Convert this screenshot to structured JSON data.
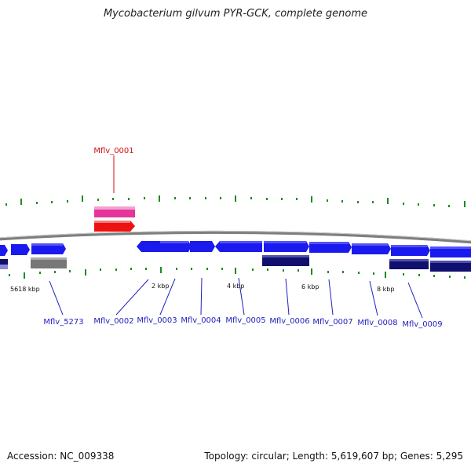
{
  "title": "Mycobacterium gilvum PYR-GCK, complete genome",
  "footer": {
    "accession": "Accession: NC_009338",
    "topology": "Topology: circular; Length: 5,619,607 bp; Genes: 5,295"
  },
  "colors": {
    "forward_gene": "#1a1aee",
    "reverse_gene": "#10106e",
    "gray_feature": "#777777",
    "pink_feature": "#e6359a",
    "red_feature": "#ee1111",
    "tick": "#1f8a1f",
    "backbone": "#8a8a8a",
    "label_blue": "#1f1fbf",
    "label_red": "#d01010"
  },
  "kbp_labels": [
    "5618 kbp",
    "2 kbp",
    "4 kbp",
    "6 kbp",
    "8 kbp"
  ],
  "genes": [
    {
      "name": "Mflv_0001",
      "color": "red",
      "highlighted": true
    },
    {
      "name": "Mflv_5273",
      "color": "blue"
    },
    {
      "name": "Mflv_0002",
      "color": "blue"
    },
    {
      "name": "Mflv_0003",
      "color": "blue"
    },
    {
      "name": "Mflv_0004",
      "color": "blue"
    },
    {
      "name": "Mflv_0005",
      "color": "blue"
    },
    {
      "name": "Mflv_0006",
      "color": "blue"
    },
    {
      "name": "Mflv_0007",
      "color": "blue"
    },
    {
      "name": "Mflv_0008",
      "color": "blue"
    },
    {
      "name": "Mflv_0009",
      "color": "blue"
    }
  ]
}
